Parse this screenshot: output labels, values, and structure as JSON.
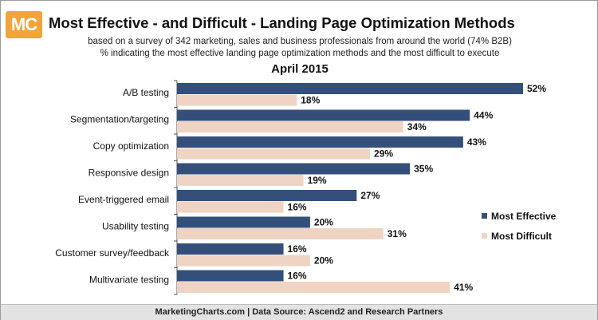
{
  "logo": {
    "text": "MC"
  },
  "title": "Most Effective - and Difficult - Landing Page Optimization Methods",
  "subtitle1": "based on a survey of 342 marketing, sales and business professionals from around the world (74% B2B)",
  "subtitle2": "% indicating the most effective landing page optimization methods and the most difficult to execute",
  "date": "April 2015",
  "footer": "MarketingCharts.com | Data Source: Ascend2 and Research Partners",
  "chart_data": {
    "type": "bar",
    "orientation": "horizontal",
    "categories": [
      "A/B testing",
      "Segmentation/targeting",
      "Copy optimization",
      "Responsive design",
      "Event-triggered email",
      "Usability testing",
      "Customer survey/feedback",
      "Multivariate testing"
    ],
    "series": [
      {
        "name": "Most Effective",
        "color": "#34507a",
        "values": [
          52,
          44,
          43,
          35,
          27,
          20,
          16,
          16
        ]
      },
      {
        "name": "Most Difficult",
        "color": "#efd4c4",
        "values": [
          18,
          34,
          29,
          19,
          16,
          31,
          20,
          41
        ]
      }
    ],
    "value_suffix": "%",
    "xlim": [
      0,
      52
    ],
    "grid": false,
    "legend_position": "right"
  }
}
